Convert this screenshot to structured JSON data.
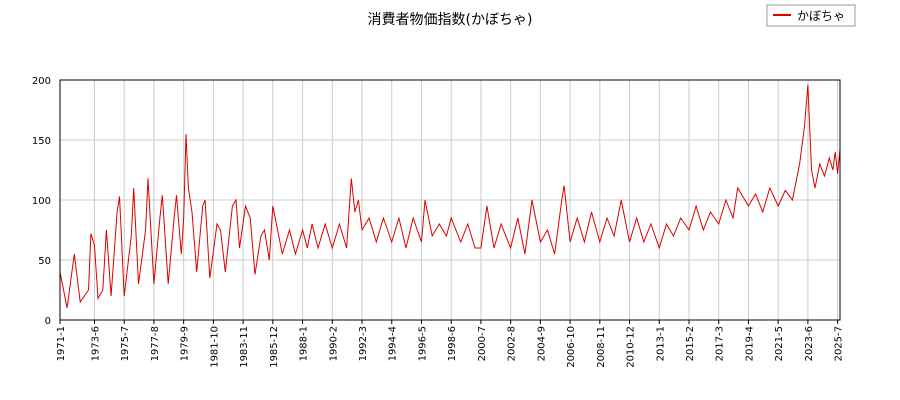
{
  "chart_data": {
    "type": "line",
    "title": "消費者物価指数(かぼちゃ)",
    "xlabel": "",
    "ylabel": "",
    "ylim": [
      0,
      200
    ],
    "yticks": [
      0,
      50,
      100,
      150,
      200
    ],
    "grid": true,
    "legend_position": "top-right",
    "x_range": [
      "1971-1",
      "2025-9"
    ],
    "x_tick_labels": [
      "1971-1",
      "1973-6",
      "1975-7",
      "1977-8",
      "1979-9",
      "1981-10",
      "1983-11",
      "1985-12",
      "1988-1",
      "1990-2",
      "1992-3",
      "1994-4",
      "1996-5",
      "1998-6",
      "2000-7",
      "2002-8",
      "2004-9",
      "2006-10",
      "2008-11",
      "2010-12",
      "2013-1",
      "2015-2",
      "2017-3",
      "2019-4",
      "2021-5",
      "2023-6",
      "2025-7"
    ],
    "series": [
      {
        "name": "かぼちゃ",
        "color": "#dd0000",
        "points": [
          [
            "1971-1",
            40
          ],
          [
            "1971-7",
            10
          ],
          [
            "1972-1",
            55
          ],
          [
            "1972-6",
            15
          ],
          [
            "1973-1",
            25
          ],
          [
            "1973-3",
            72
          ],
          [
            "1973-6",
            62
          ],
          [
            "1973-9",
            18
          ],
          [
            "1974-1",
            25
          ],
          [
            "1974-4",
            75
          ],
          [
            "1974-8",
            20
          ],
          [
            "1975-1",
            90
          ],
          [
            "1975-3",
            103
          ],
          [
            "1975-7",
            20
          ],
          [
            "1976-1",
            70
          ],
          [
            "1976-3",
            110
          ],
          [
            "1976-7",
            30
          ],
          [
            "1977-1",
            75
          ],
          [
            "1977-3",
            118
          ],
          [
            "1977-8",
            30
          ],
          [
            "1978-1",
            85
          ],
          [
            "1978-3",
            104
          ],
          [
            "1978-8",
            30
          ],
          [
            "1979-1",
            85
          ],
          [
            "1979-3",
            104
          ],
          [
            "1979-7",
            55
          ],
          [
            "1979-9",
            85
          ],
          [
            "1979-11",
            155
          ],
          [
            "1980-1",
            110
          ],
          [
            "1980-4",
            90
          ],
          [
            "1980-8",
            40
          ],
          [
            "1981-1",
            95
          ],
          [
            "1981-3",
            100
          ],
          [
            "1981-7",
            35
          ],
          [
            "1982-1",
            80
          ],
          [
            "1982-4",
            75
          ],
          [
            "1982-8",
            40
          ],
          [
            "1983-2",
            95
          ],
          [
            "1983-5",
            100
          ],
          [
            "1983-8",
            60
          ],
          [
            "1984-1",
            95
          ],
          [
            "1984-5",
            85
          ],
          [
            "1984-9",
            38
          ],
          [
            "1985-2",
            70
          ],
          [
            "1985-5",
            75
          ],
          [
            "1985-9",
            50
          ],
          [
            "1985-12",
            95
          ],
          [
            "1986-4",
            75
          ],
          [
            "1986-8",
            55
          ],
          [
            "1987-2",
            75
          ],
          [
            "1987-7",
            55
          ],
          [
            "1988-1",
            75
          ],
          [
            "1988-5",
            60
          ],
          [
            "1988-9",
            80
          ],
          [
            "1989-2",
            60
          ],
          [
            "1989-8",
            80
          ],
          [
            "1990-2",
            60
          ],
          [
            "1990-8",
            80
          ],
          [
            "1991-2",
            60
          ],
          [
            "1991-6",
            118
          ],
          [
            "1991-9",
            90
          ],
          [
            "1991-12",
            100
          ],
          [
            "1992-3",
            75
          ],
          [
            "1992-9",
            85
          ],
          [
            "1993-3",
            65
          ],
          [
            "1993-9",
            85
          ],
          [
            "1994-4",
            65
          ],
          [
            "1994-10",
            85
          ],
          [
            "1995-4",
            60
          ],
          [
            "1995-10",
            85
          ],
          [
            "1996-5",
            65
          ],
          [
            "1996-8",
            100
          ],
          [
            "1997-2",
            70
          ],
          [
            "1997-8",
            80
          ],
          [
            "1998-2",
            70
          ],
          [
            "1998-6",
            85
          ],
          [
            "1999-2",
            65
          ],
          [
            "1999-8",
            80
          ],
          [
            "2000-2",
            60
          ],
          [
            "2000-7",
            60
          ],
          [
            "2000-12",
            95
          ],
          [
            "2001-6",
            60
          ],
          [
            "2001-12",
            80
          ],
          [
            "2002-8",
            60
          ],
          [
            "2003-2",
            85
          ],
          [
            "2003-8",
            55
          ],
          [
            "2004-2",
            100
          ],
          [
            "2004-9",
            65
          ],
          [
            "2005-3",
            75
          ],
          [
            "2005-9",
            55
          ],
          [
            "2006-3",
            100
          ],
          [
            "2006-5",
            112
          ],
          [
            "2006-10",
            65
          ],
          [
            "2007-4",
            85
          ],
          [
            "2007-10",
            65
          ],
          [
            "2008-4",
            90
          ],
          [
            "2008-11",
            65
          ],
          [
            "2009-5",
            85
          ],
          [
            "2009-11",
            70
          ],
          [
            "2010-5",
            100
          ],
          [
            "2010-12",
            65
          ],
          [
            "2011-6",
            85
          ],
          [
            "2011-12",
            65
          ],
          [
            "2012-6",
            80
          ],
          [
            "2013-1",
            60
          ],
          [
            "2013-7",
            80
          ],
          [
            "2014-1",
            70
          ],
          [
            "2014-7",
            85
          ],
          [
            "2015-2",
            75
          ],
          [
            "2015-8",
            95
          ],
          [
            "2016-2",
            75
          ],
          [
            "2016-8",
            90
          ],
          [
            "2017-3",
            80
          ],
          [
            "2017-9",
            100
          ],
          [
            "2018-3",
            85
          ],
          [
            "2018-7",
            110
          ],
          [
            "2019-1",
            100
          ],
          [
            "2019-4",
            95
          ],
          [
            "2019-10",
            105
          ],
          [
            "2020-4",
            90
          ],
          [
            "2020-10",
            110
          ],
          [
            "2021-5",
            95
          ],
          [
            "2021-11",
            108
          ],
          [
            "2022-5",
            100
          ],
          [
            "2022-11",
            130
          ],
          [
            "2023-3",
            160
          ],
          [
            "2023-6",
            196
          ],
          [
            "2023-9",
            125
          ],
          [
            "2023-12",
            110
          ],
          [
            "2024-4",
            130
          ],
          [
            "2024-8",
            120
          ],
          [
            "2024-12",
            135
          ],
          [
            "2025-3",
            125
          ],
          [
            "2025-5",
            140
          ],
          [
            "2025-7",
            122
          ],
          [
            "2025-9",
            142
          ]
        ]
      }
    ]
  }
}
